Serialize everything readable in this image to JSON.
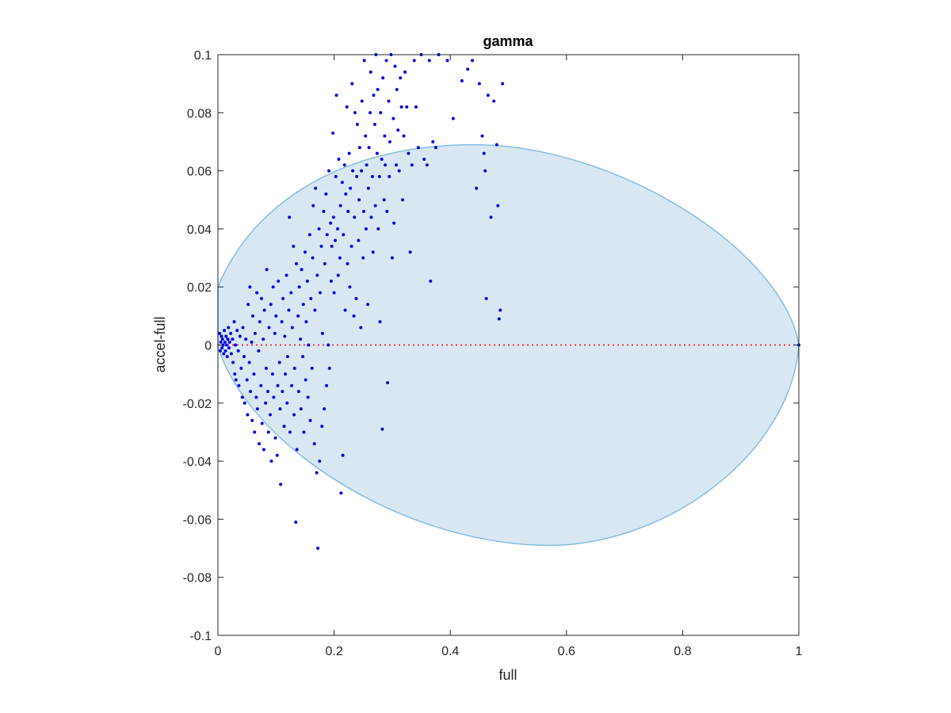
{
  "chart_data": {
    "type": "scatter",
    "title": "gamma",
    "xlabel": "full",
    "ylabel": "accel-full",
    "xlim": [
      0,
      1
    ],
    "ylim": [
      -0.1,
      0.1
    ],
    "xticks": [
      0,
      0.2,
      0.4,
      0.6,
      0.8,
      1
    ],
    "xtick_labels": [
      "0",
      "0.2",
      "0.4",
      "0.6",
      "0.8",
      "1"
    ],
    "yticks": [
      -0.1,
      -0.08,
      -0.06,
      -0.04,
      -0.02,
      0,
      0.02,
      0.04,
      0.06,
      0.08,
      0.1
    ],
    "ytick_labels": [
      "-0.1",
      "-0.08",
      "-0.06",
      "-0.04",
      "-0.02",
      "0",
      "0.02",
      "0.04",
      "0.06",
      "0.08",
      "0.1"
    ],
    "grid": false,
    "colors": {
      "points": "#0000ee",
      "zero_line": "#ff0000",
      "region_fill": "#d9e7f3",
      "region_edge": "#86bde0",
      "axes": "#262626"
    },
    "reference_line": {
      "y": 0,
      "x_range": [
        0,
        1
      ],
      "style": "dotted"
    },
    "region": {
      "shape": "half-ellipse",
      "upper_y_range": [
        0.02,
        0.069
      ],
      "lower_y_range": [
        -0.018,
        -0.069
      ],
      "peak_x": 0.44,
      "trough_x": 0.57
    },
    "points": [
      [
        0.003,
        0.004
      ],
      [
        0.004,
        -0.002
      ],
      [
        0.005,
        0.001
      ],
      [
        0.006,
        0.003
      ],
      [
        0.007,
        -0.001
      ],
      [
        0.008,
        0.002
      ],
      [
        0.009,
        0.0
      ],
      [
        0.01,
        -0.003
      ],
      [
        0.011,
        0.005
      ],
      [
        0.012,
        0.001
      ],
      [
        0.013,
        -0.002
      ],
      [
        0.014,
        0.003
      ],
      [
        0.015,
        0.0
      ],
      [
        0.016,
        -0.004
      ],
      [
        0.017,
        0.002
      ],
      [
        0.018,
        0.006
      ],
      [
        0.019,
        -0.001
      ],
      [
        0.02,
        0.001
      ],
      [
        0.022,
        0.004
      ],
      [
        0.023,
        -0.003
      ],
      [
        0.025,
        0.002
      ],
      [
        0.026,
        -0.006
      ],
      [
        0.028,
        0.008
      ],
      [
        0.029,
        -0.01
      ],
      [
        0.03,
        0.0
      ],
      [
        0.031,
        -0.012
      ],
      [
        0.033,
        0.005
      ],
      [
        0.035,
        -0.002
      ],
      [
        0.036,
        -0.014
      ],
      [
        0.038,
        0.003
      ],
      [
        0.04,
        -0.008
      ],
      [
        0.042,
        -0.018
      ],
      [
        0.043,
        0.006
      ],
      [
        0.045,
        -0.004
      ],
      [
        0.046,
        -0.02
      ],
      [
        0.048,
        0.002
      ],
      [
        0.05,
        -0.012
      ],
      [
        0.051,
        -0.024
      ],
      [
        0.052,
        0.014
      ],
      [
        0.054,
        -0.006
      ],
      [
        0.055,
        0.02
      ],
      [
        0.056,
        -0.016
      ],
      [
        0.058,
        0.001
      ],
      [
        0.059,
        -0.026
      ],
      [
        0.06,
        0.01
      ],
      [
        0.062,
        -0.01
      ],
      [
        0.063,
        -0.03
      ],
      [
        0.064,
        0.004
      ],
      [
        0.066,
        -0.018
      ],
      [
        0.067,
        0.018
      ],
      [
        0.068,
        -0.022
      ],
      [
        0.07,
        -0.002
      ],
      [
        0.071,
        -0.034
      ],
      [
        0.072,
        0.008
      ],
      [
        0.074,
        -0.014
      ],
      [
        0.075,
        0.016
      ],
      [
        0.076,
        -0.027
      ],
      [
        0.078,
        0.002
      ],
      [
        0.079,
        -0.036
      ],
      [
        0.08,
        0.012
      ],
      [
        0.082,
        -0.02
      ],
      [
        0.083,
        -0.008
      ],
      [
        0.084,
        0.026
      ],
      [
        0.086,
        -0.016
      ],
      [
        0.087,
        -0.03
      ],
      [
        0.088,
        0.006
      ],
      [
        0.09,
        -0.024
      ],
      [
        0.091,
        0.014
      ],
      [
        0.092,
        -0.04
      ],
      [
        0.094,
        -0.01
      ],
      [
        0.095,
        0.02
      ],
      [
        0.096,
        -0.018
      ],
      [
        0.098,
        0.004
      ],
      [
        0.099,
        -0.032
      ],
      [
        0.1,
        0.01
      ],
      [
        0.102,
        -0.038
      ],
      [
        0.103,
        -0.014
      ],
      [
        0.104,
        0.022
      ],
      [
        0.106,
        -0.006
      ],
      [
        0.107,
        -0.022
      ],
      [
        0.108,
        -0.048
      ],
      [
        0.11,
        0.008
      ],
      [
        0.111,
        -0.016
      ],
      [
        0.112,
        0.016
      ],
      [
        0.114,
        -0.028
      ],
      [
        0.115,
        0.003
      ],
      [
        0.116,
        -0.01
      ],
      [
        0.118,
        0.024
      ],
      [
        0.119,
        -0.02
      ],
      [
        0.12,
        -0.004
      ],
      [
        0.122,
        0.012
      ],
      [
        0.123,
        0.044
      ],
      [
        0.124,
        -0.03
      ],
      [
        0.126,
        0.018
      ],
      [
        0.127,
        -0.014
      ],
      [
        0.128,
        0.006
      ],
      [
        0.13,
        0.034
      ],
      [
        0.131,
        -0.024
      ],
      [
        0.132,
        -0.008
      ],
      [
        0.134,
        -0.061
      ],
      [
        0.135,
        0.028
      ],
      [
        0.136,
        -0.036
      ],
      [
        0.138,
        0.01
      ],
      [
        0.139,
        -0.016
      ],
      [
        0.14,
        0.02
      ],
      [
        0.142,
        0.002
      ],
      [
        0.143,
        -0.022
      ],
      [
        0.144,
        0.026
      ],
      [
        0.146,
        -0.004
      ],
      [
        0.147,
        0.014
      ],
      [
        0.148,
        -0.03
      ],
      [
        0.15,
        0.032
      ],
      [
        0.151,
        -0.012
      ],
      [
        0.152,
        0.008
      ],
      [
        0.154,
        0.022
      ],
      [
        0.155,
        -0.018
      ],
      [
        0.156,
        0.0
      ],
      [
        0.158,
        0.038
      ],
      [
        0.159,
        -0.026
      ],
      [
        0.16,
        0.016
      ],
      [
        0.162,
        -0.008
      ],
      [
        0.163,
        0.03
      ],
      [
        0.164,
        0.048
      ],
      [
        0.166,
        -0.034
      ],
      [
        0.167,
        0.012
      ],
      [
        0.168,
        0.054
      ],
      [
        0.17,
        -0.044
      ],
      [
        0.171,
        0.024
      ],
      [
        0.172,
        -0.07
      ],
      [
        0.174,
        0.04
      ],
      [
        0.175,
        -0.04
      ],
      [
        0.176,
        0.018
      ],
      [
        0.178,
        0.034
      ],
      [
        0.179,
        -0.028
      ],
      [
        0.18,
        0.004
      ],
      [
        0.182,
        0.046
      ],
      [
        0.183,
        -0.022
      ],
      [
        0.184,
        0.028
      ],
      [
        0.186,
        0.052
      ],
      [
        0.187,
        -0.014
      ],
      [
        0.188,
        0.038
      ],
      [
        0.19,
        0.0
      ],
      [
        0.191,
        0.06
      ],
      [
        0.192,
        -0.008
      ],
      [
        0.194,
        0.042
      ],
      [
        0.195,
        0.022
      ],
      [
        0.196,
        0.034
      ],
      [
        0.198,
        0.073
      ],
      [
        0.199,
        0.044
      ],
      [
        0.2,
        0.018
      ],
      [
        0.202,
        0.036
      ],
      [
        0.203,
        0.058
      ],
      [
        0.204,
        0.086
      ],
      [
        0.206,
        0.04
      ],
      [
        0.207,
        0.024
      ],
      [
        0.208,
        0.064
      ],
      [
        0.21,
        0.03
      ],
      [
        0.211,
        0.048
      ],
      [
        0.212,
        -0.051
      ],
      [
        0.214,
        0.056
      ],
      [
        0.215,
        -0.038
      ],
      [
        0.216,
        0.038
      ],
      [
        0.218,
        0.062
      ],
      [
        0.219,
        0.012
      ],
      [
        0.22,
        0.052
      ],
      [
        0.222,
        0.082
      ],
      [
        0.223,
        0.028
      ],
      [
        0.224,
        0.046
      ],
      [
        0.226,
        0.066
      ],
      [
        0.227,
        0.02
      ],
      [
        0.228,
        0.054
      ],
      [
        0.23,
        0.034
      ],
      [
        0.231,
        0.09
      ],
      [
        0.232,
        0.06
      ],
      [
        0.234,
        0.01
      ],
      [
        0.235,
        0.044
      ],
      [
        0.236,
        0.08
      ],
      [
        0.238,
        0.016
      ],
      [
        0.239,
        0.058
      ],
      [
        0.24,
        0.076
      ],
      [
        0.242,
        0.036
      ],
      [
        0.243,
        0.05
      ],
      [
        0.244,
        0.068
      ],
      [
        0.246,
        0.006
      ],
      [
        0.247,
        0.06
      ],
      [
        0.248,
        0.084
      ],
      [
        0.25,
        0.03
      ],
      [
        0.251,
        0.046
      ],
      [
        0.252,
        0.098
      ],
      [
        0.254,
        0.072
      ],
      [
        0.255,
        0.04
      ],
      [
        0.256,
        0.062
      ],
      [
        0.258,
        0.014
      ],
      [
        0.259,
        0.054
      ],
      [
        0.26,
        0.068
      ],
      [
        0.262,
        0.08
      ],
      [
        0.263,
        0.094
      ],
      [
        0.264,
        0.044
      ],
      [
        0.266,
        0.058
      ],
      [
        0.267,
        0.032
      ],
      [
        0.268,
        0.086
      ],
      [
        0.27,
        0.076
      ],
      [
        0.271,
        0.048
      ],
      [
        0.272,
        0.1
      ],
      [
        0.274,
        0.066
      ],
      [
        0.275,
        0.088
      ],
      [
        0.276,
        0.04
      ],
      [
        0.278,
        0.058
      ],
      [
        0.279,
        0.008
      ],
      [
        0.28,
        0.08
      ],
      [
        0.282,
        0.064
      ],
      [
        0.283,
        -0.029
      ],
      [
        0.284,
        0.092
      ],
      [
        0.286,
        0.05
      ],
      [
        0.287,
        0.072
      ],
      [
        0.288,
        0.062
      ],
      [
        0.29,
        0.098
      ],
      [
        0.291,
        0.046
      ],
      [
        0.292,
        -0.013
      ],
      [
        0.294,
        0.084
      ],
      [
        0.295,
        0.058
      ],
      [
        0.296,
        0.07
      ],
      [
        0.298,
        0.1
      ],
      [
        0.3,
        0.03
      ],
      [
        0.302,
        0.078
      ],
      [
        0.303,
        0.042
      ],
      [
        0.305,
        0.096
      ],
      [
        0.307,
        0.062
      ],
      [
        0.308,
        0.088
      ],
      [
        0.31,
        0.074
      ],
      [
        0.312,
        0.06
      ],
      [
        0.314,
        0.092
      ],
      [
        0.316,
        0.082
      ],
      [
        0.318,
        0.05
      ],
      [
        0.32,
        0.072
      ],
      [
        0.322,
        0.094
      ],
      [
        0.325,
        0.082
      ],
      [
        0.328,
        0.066
      ],
      [
        0.331,
        0.032
      ],
      [
        0.334,
        0.062
      ],
      [
        0.338,
        0.098
      ],
      [
        0.341,
        0.082
      ],
      [
        0.345,
        0.068
      ],
      [
        0.35,
        0.1
      ],
      [
        0.355,
        0.064
      ],
      [
        0.36,
        0.062
      ],
      [
        0.364,
        0.098
      ],
      [
        0.366,
        0.022
      ],
      [
        0.37,
        0.07
      ],
      [
        0.375,
        0.068
      ],
      [
        0.38,
        0.1
      ],
      [
        0.395,
        0.098
      ],
      [
        0.405,
        0.078
      ],
      [
        0.42,
        0.091
      ],
      [
        0.43,
        0.095
      ],
      [
        0.438,
        0.098
      ],
      [
        0.445,
        0.054
      ],
      [
        0.45,
        0.09
      ],
      [
        0.455,
        0.072
      ],
      [
        0.458,
        0.066
      ],
      [
        0.46,
        0.06
      ],
      [
        0.462,
        0.016
      ],
      [
        0.465,
        0.086
      ],
      [
        0.47,
        0.044
      ],
      [
        0.475,
        0.084
      ],
      [
        0.48,
        0.069
      ],
      [
        0.482,
        0.048
      ],
      [
        0.484,
        0.009
      ],
      [
        0.486,
        0.012
      ],
      [
        0.49,
        0.09
      ],
      [
        1.0,
        0.0
      ]
    ]
  }
}
